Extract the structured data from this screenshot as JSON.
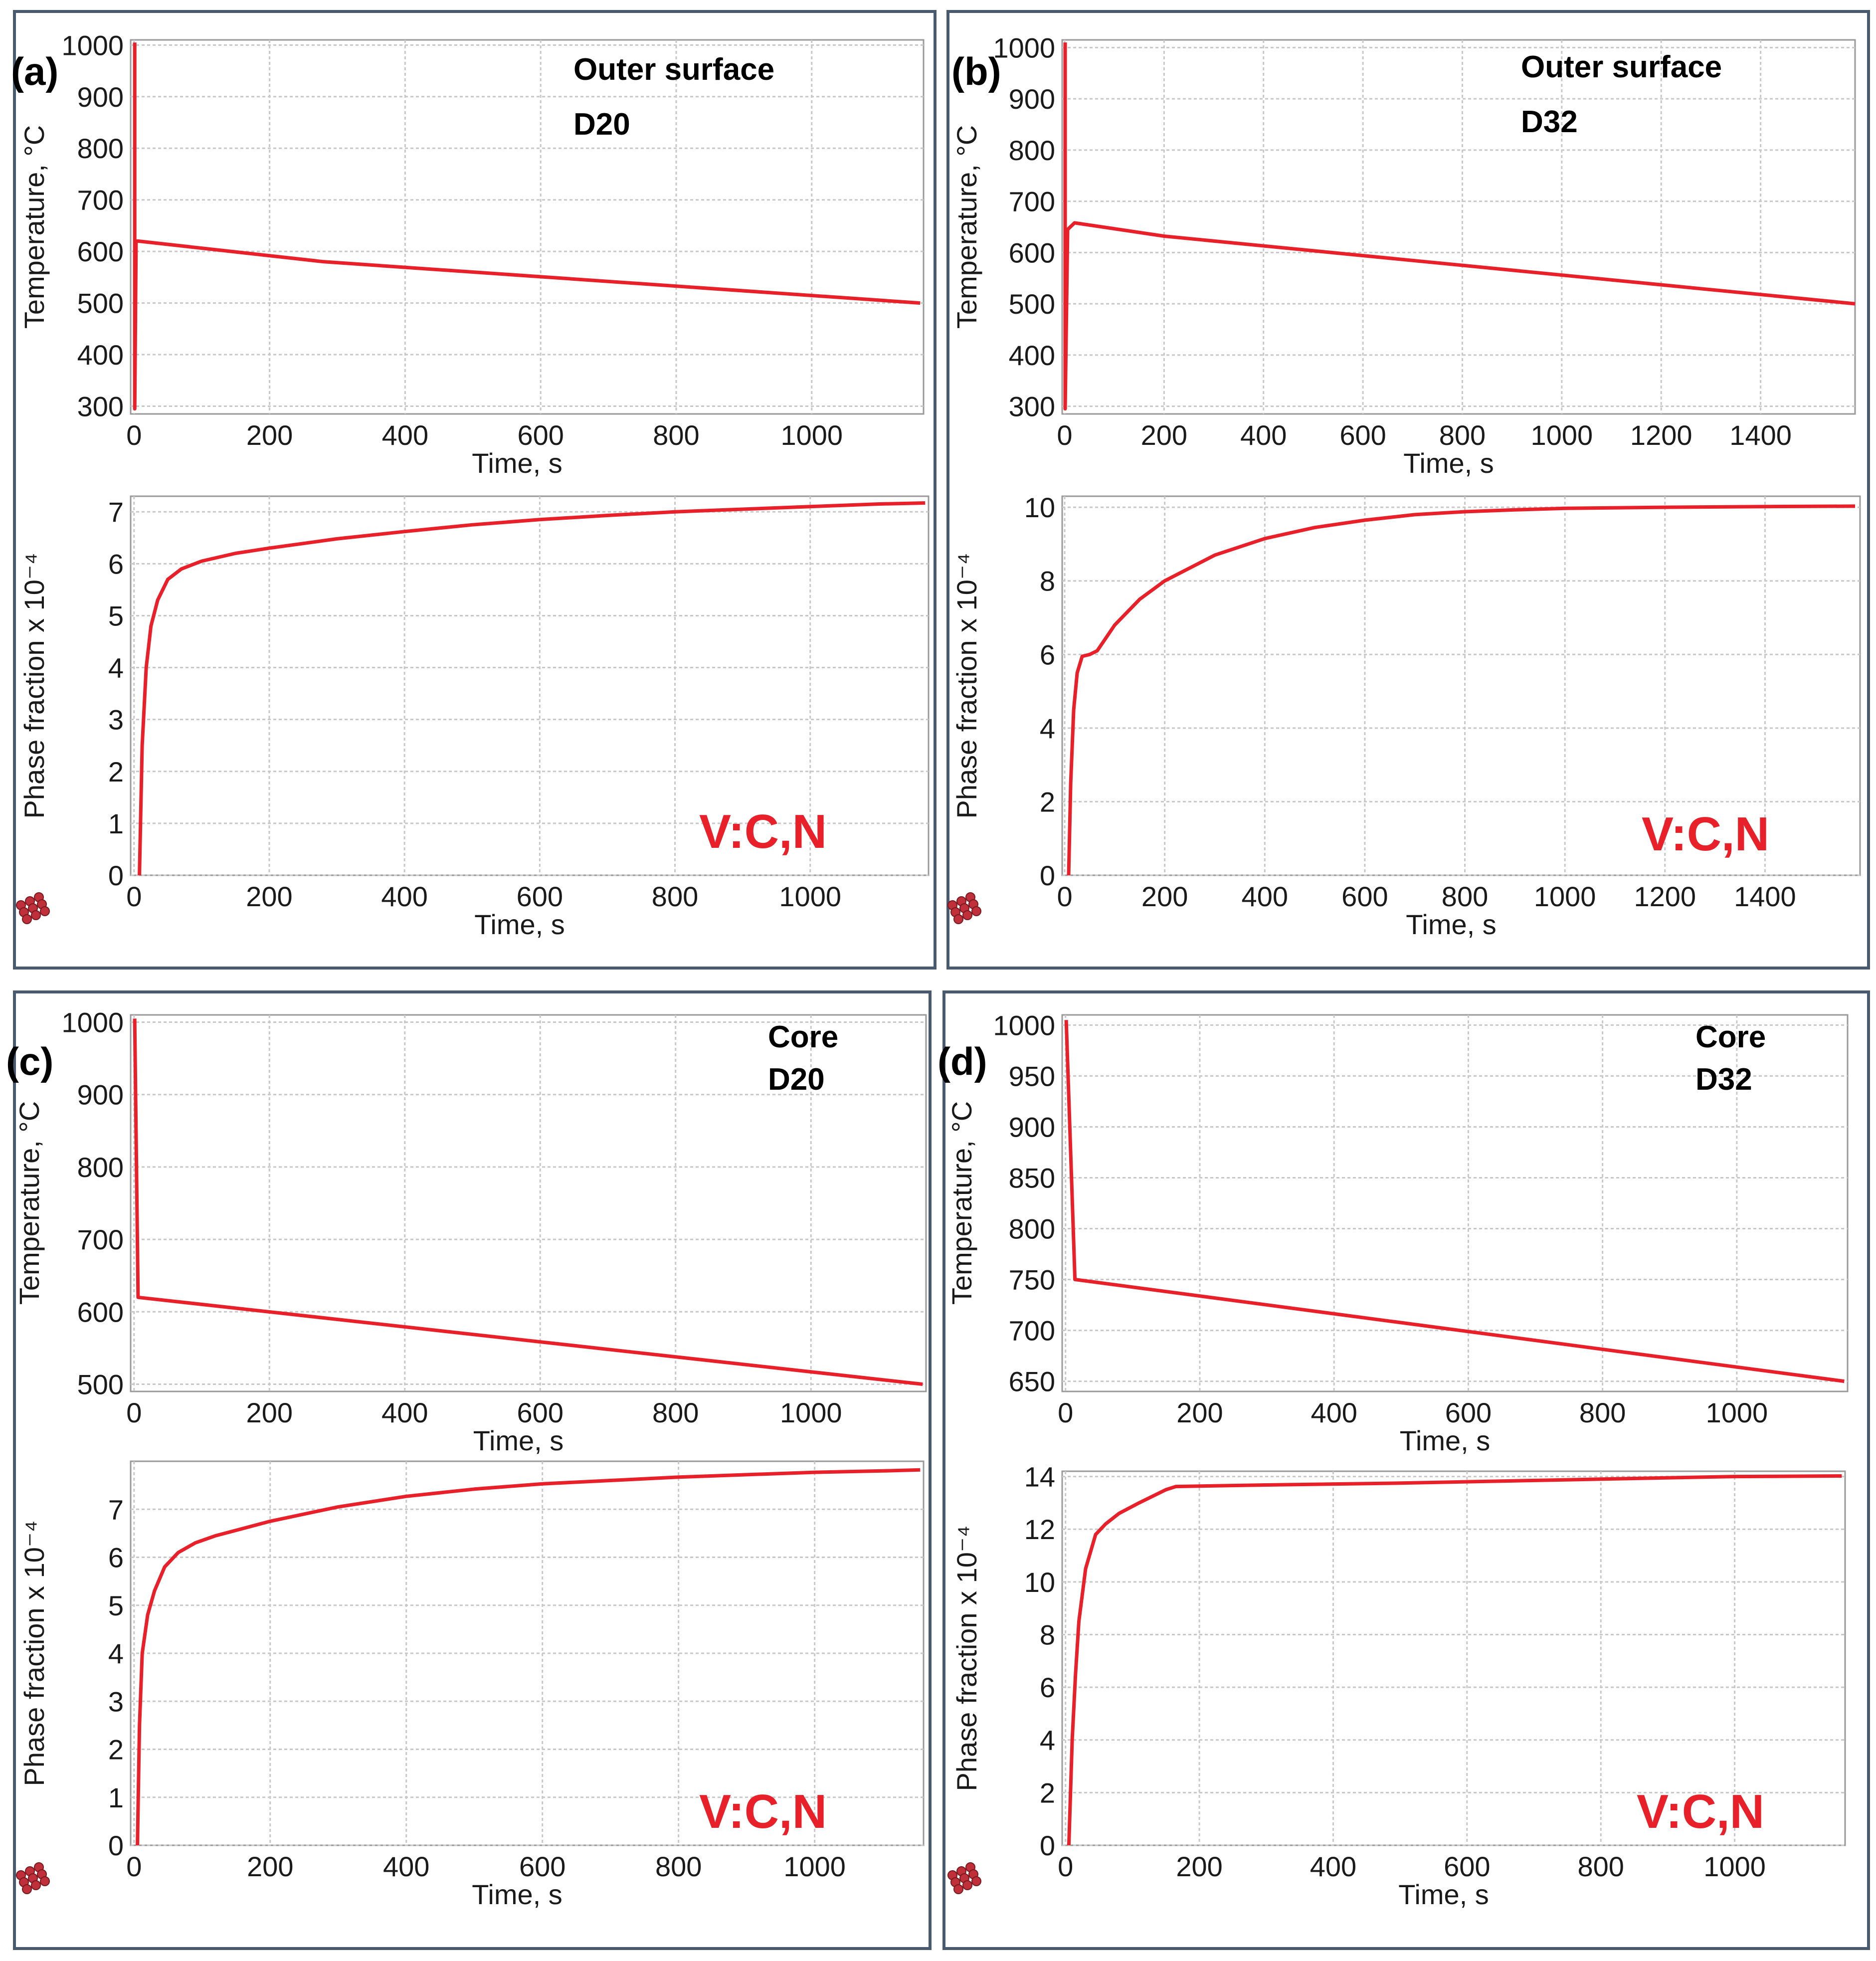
{
  "figure": {
    "series_color": "#e8202a",
    "frame_color": "#4a5a6e",
    "grid_color": "#c8c8c8"
  },
  "chart_data": [
    {
      "id": "a-temp",
      "panel": "(a)",
      "type": "line",
      "annotations": [
        "Outer surface",
        "D20"
      ],
      "xlabel": "Time, s",
      "ylabel": "Temperature, °C",
      "xlim": [
        -5,
        1165
      ],
      "ylim": [
        285,
        1010
      ],
      "xticks": [
        0,
        200,
        400,
        600,
        800,
        1000
      ],
      "yticks": [
        300,
        400,
        500,
        600,
        700,
        800,
        900,
        1000
      ],
      "series": [
        {
          "name": "Temperature",
          "x": [
            1,
            1,
            3,
            6,
            280,
            1160
          ],
          "y": [
            1005,
            295,
            620,
            620,
            580,
            500
          ]
        }
      ]
    },
    {
      "id": "a-phase",
      "panel": "",
      "type": "line",
      "annotations": [
        "V:C,N"
      ],
      "xlabel": "Time, s",
      "ylabel": "Phase fraction x 10⁻⁴",
      "xlim": [
        -5,
        1175
      ],
      "ylim": [
        0,
        7.3
      ],
      "xticks": [
        0,
        200,
        400,
        600,
        800,
        1000
      ],
      "yticks": [
        0,
        1,
        2,
        3,
        4,
        5,
        6,
        7
      ],
      "series": [
        {
          "name": "V:C,N",
          "x": [
            8,
            12,
            18,
            25,
            35,
            50,
            70,
            100,
            150,
            200,
            300,
            400,
            500,
            600,
            700,
            800,
            900,
            1000,
            1100,
            1170
          ],
          "y": [
            0,
            2.5,
            4.0,
            4.8,
            5.3,
            5.7,
            5.9,
            6.05,
            6.2,
            6.3,
            6.48,
            6.62,
            6.75,
            6.85,
            6.93,
            7.0,
            7.05,
            7.1,
            7.15,
            7.17
          ]
        }
      ]
    },
    {
      "id": "b-temp",
      "panel": "(b)",
      "type": "line",
      "annotations": [
        "Outer surface",
        "D32"
      ],
      "xlabel": "Time, s",
      "ylabel": "Temperature, °C",
      "xlim": [
        -5,
        1590
      ],
      "ylim": [
        285,
        1015
      ],
      "xticks": [
        0,
        200,
        400,
        600,
        800,
        1000,
        1200,
        1400
      ],
      "yticks": [
        300,
        400,
        500,
        600,
        700,
        800,
        900,
        1000
      ],
      "series": [
        {
          "name": "Temperature",
          "x": [
            1,
            1,
            6,
            20,
            200,
            1590
          ],
          "y": [
            1010,
            295,
            645,
            658,
            632,
            500
          ]
        }
      ]
    },
    {
      "id": "b-phase",
      "panel": "",
      "type": "line",
      "annotations": [
        "V:C,N"
      ],
      "xlabel": "Time, s",
      "ylabel": "Phase fraction x 10⁻⁴",
      "xlim": [
        -5,
        1590
      ],
      "ylim": [
        0,
        10.3
      ],
      "xticks": [
        0,
        200,
        400,
        600,
        800,
        1000,
        1200,
        1400
      ],
      "yticks": [
        0,
        2,
        4,
        6,
        8,
        10
      ],
      "series": [
        {
          "name": "V:C,N",
          "x": [
            8,
            12,
            18,
            25,
            35,
            50,
            65,
            80,
            100,
            150,
            200,
            300,
            400,
            500,
            600,
            700,
            800,
            900,
            1000,
            1200,
            1400,
            1580
          ],
          "y": [
            0,
            2.5,
            4.5,
            5.5,
            5.95,
            6.0,
            6.1,
            6.4,
            6.8,
            7.5,
            8.0,
            8.7,
            9.15,
            9.45,
            9.65,
            9.8,
            9.88,
            9.93,
            9.97,
            10.0,
            10.02,
            10.03
          ]
        }
      ]
    },
    {
      "id": "c-temp",
      "panel": "(c)",
      "type": "line",
      "annotations": [
        "Core",
        "D20"
      ],
      "xlabel": "Time, s",
      "ylabel": "Temperature, °C",
      "xlim": [
        -5,
        1170
      ],
      "ylim": [
        490,
        1010
      ],
      "xticks": [
        0,
        200,
        400,
        600,
        800,
        1000
      ],
      "yticks": [
        500,
        600,
        700,
        800,
        900,
        1000
      ],
      "series": [
        {
          "name": "Temperature",
          "x": [
            1,
            6,
            1165
          ],
          "y": [
            1005,
            620,
            500
          ]
        }
      ]
    },
    {
      "id": "c-phase",
      "panel": "",
      "type": "line",
      "annotations": [
        "V:C,N"
      ],
      "xlabel": "Time, s",
      "ylabel": "Phase fraction x 10⁻⁴",
      "xlim": [
        -5,
        1160
      ],
      "ylim": [
        0,
        8.0
      ],
      "xticks": [
        0,
        200,
        400,
        600,
        800,
        1000
      ],
      "yticks": [
        0,
        1,
        2,
        3,
        4,
        5,
        6,
        7
      ],
      "series": [
        {
          "name": "V:C,N",
          "x": [
            5,
            8,
            12,
            20,
            30,
            45,
            65,
            90,
            120,
            200,
            300,
            400,
            500,
            600,
            700,
            800,
            900,
            1000,
            1100,
            1155
          ],
          "y": [
            0,
            2.5,
            4.0,
            4.8,
            5.3,
            5.8,
            6.1,
            6.3,
            6.45,
            6.75,
            7.05,
            7.27,
            7.42,
            7.53,
            7.6,
            7.67,
            7.72,
            7.77,
            7.8,
            7.82
          ]
        }
      ]
    },
    {
      "id": "d-temp",
      "panel": "(d)",
      "type": "line",
      "annotations": [
        "Core",
        "D32"
      ],
      "xlabel": "Time, s",
      "ylabel": "Temperature, °C",
      "xlim": [
        -5,
        1165
      ],
      "ylim": [
        640,
        1010
      ],
      "xticks": [
        0,
        200,
        400,
        600,
        800,
        1000
      ],
      "yticks": [
        650,
        700,
        750,
        800,
        850,
        900,
        950,
        1000
      ],
      "series": [
        {
          "name": "Temperature",
          "x": [
            1,
            14,
            1160
          ],
          "y": [
            1005,
            750,
            650
          ]
        }
      ]
    },
    {
      "id": "d-phase",
      "panel": "",
      "type": "line",
      "annotations": [
        "V:C,N"
      ],
      "xlabel": "Time, s",
      "ylabel": "Phase fraction x 10⁻⁴",
      "xlim": [
        -5,
        1165
      ],
      "ylim": [
        0,
        14.2
      ],
      "xticks": [
        0,
        200,
        400,
        600,
        800,
        1000
      ],
      "yticks": [
        0,
        2,
        4,
        6,
        8,
        10,
        12,
        14
      ],
      "series": [
        {
          "name": "V:C,N",
          "x": [
            5,
            10,
            15,
            20,
            30,
            45,
            60,
            80,
            110,
            150,
            165,
            300,
            500,
            800,
            1000,
            1160
          ],
          "y": [
            0,
            4,
            6.5,
            8.5,
            10.5,
            11.8,
            12.2,
            12.6,
            13.0,
            13.5,
            13.62,
            13.68,
            13.75,
            13.9,
            14.0,
            14.02
          ]
        }
      ]
    }
  ]
}
